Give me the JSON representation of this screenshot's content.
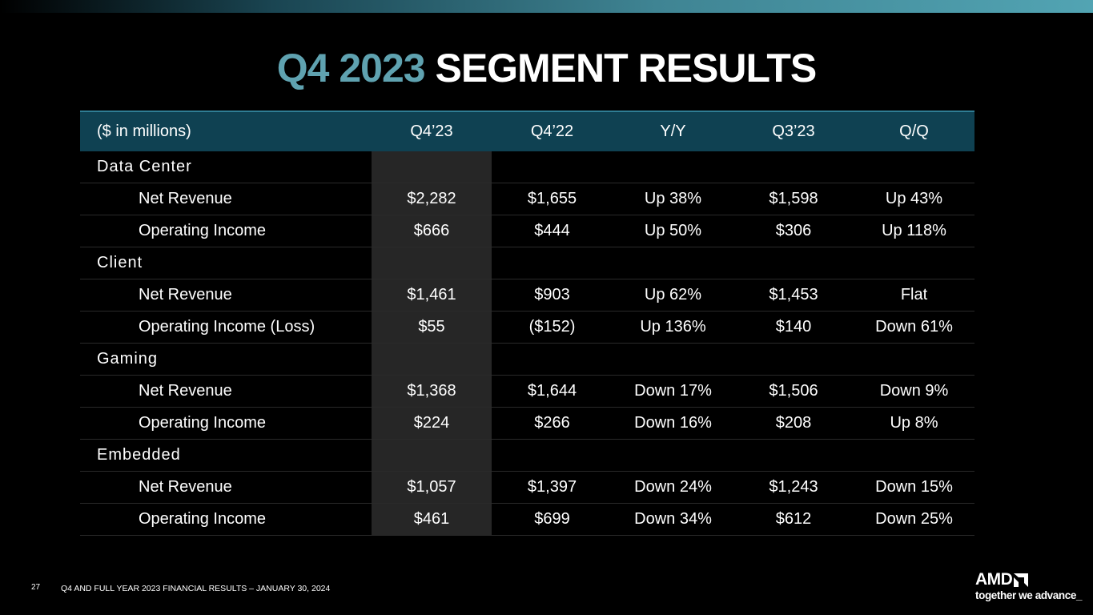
{
  "slide": {
    "title_accent": "Q4 2023",
    "title_main": "SEGMENT RESULTS",
    "page_number": "27",
    "footer": "Q4 AND FULL YEAR 2023 FINANCIAL RESULTS – JANUARY 30, 2024"
  },
  "logo": {
    "wordmark": "AMD",
    "tagline": "together we advance_"
  },
  "colors": {
    "accent": "#5fa2b0",
    "header_bg": "#0f4152",
    "highlight_col": "#262626"
  },
  "table": {
    "headers": [
      "($ in millions)",
      "Q4’23",
      "Q4’22",
      "Y/Y",
      "Q3’23",
      "Q/Q"
    ],
    "rows": [
      {
        "type": "segment",
        "cells": [
          "Data Center",
          "",
          "",
          "",
          "",
          ""
        ]
      },
      {
        "type": "metric",
        "cells": [
          "Net Revenue",
          "$2,282",
          "$1,655",
          "Up 38%",
          "$1,598",
          "Up 43%"
        ]
      },
      {
        "type": "metric",
        "cells": [
          "Operating Income",
          "$666",
          "$444",
          "Up 50%",
          "$306",
          "Up 118%"
        ]
      },
      {
        "type": "segment",
        "cells": [
          "Client",
          "",
          "",
          "",
          "",
          ""
        ]
      },
      {
        "type": "metric",
        "cells": [
          "Net Revenue",
          "$1,461",
          "$903",
          "Up 62%",
          "$1,453",
          "Flat"
        ]
      },
      {
        "type": "metric",
        "cells": [
          "Operating Income (Loss)",
          "$55",
          "($152)",
          "Up 136%",
          "$140",
          "Down 61%"
        ]
      },
      {
        "type": "segment",
        "cells": [
          "Gaming",
          "",
          "",
          "",
          "",
          ""
        ]
      },
      {
        "type": "metric",
        "cells": [
          "Net Revenue",
          "$1,368",
          "$1,644",
          "Down 17%",
          "$1,506",
          "Down 9%"
        ]
      },
      {
        "type": "metric",
        "cells": [
          "Operating Income",
          "$224",
          "$266",
          "Down 16%",
          "$208",
          "Up 8%"
        ]
      },
      {
        "type": "segment",
        "cells": [
          "Embedded",
          "",
          "",
          "",
          "",
          ""
        ]
      },
      {
        "type": "metric",
        "cells": [
          "Net Revenue",
          "$1,057",
          "$1,397",
          "Down 24%",
          "$1,243",
          "Down 15%"
        ]
      },
      {
        "type": "metric",
        "cells": [
          "Operating Income",
          "$461",
          "$699",
          "Down 34%",
          "$612",
          "Down 25%"
        ]
      }
    ]
  }
}
